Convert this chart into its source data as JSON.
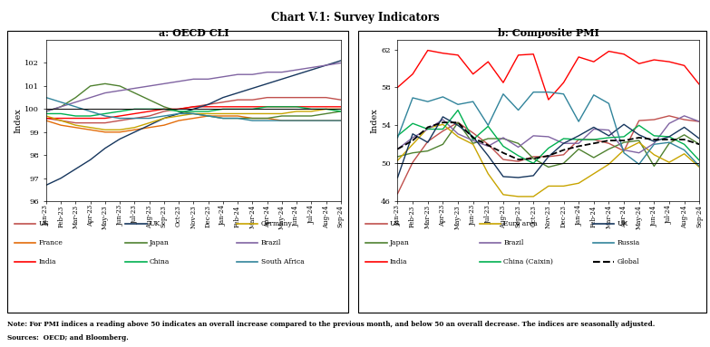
{
  "title": "Chart V.1: Survey Indicators",
  "note": "Note: For PMI indices a reading above 50 indicates an overall increase compared to the previous month, and below 50 an overall decrease. The indices are seasonally adjusted.",
  "sources": "Sources:  OECD; and Bloomberg.",
  "cli_labels": [
    "Jan-23",
    "Feb-23",
    "Mar-23",
    "Apr-23",
    "May-23",
    "Jun-23",
    "Jul-23",
    "Aug-23",
    "Sep-23",
    "Oct-23",
    "Nov-23",
    "Dec-23",
    "Jan-24",
    "Feb-24",
    "Mar-24",
    "Apr-24",
    "May-24",
    "Jun-24",
    "Jul-24",
    "Aug-24",
    "Sep-24"
  ],
  "cli_series": {
    "US": [
      99.6,
      99.5,
      99.4,
      99.4,
      99.4,
      99.5,
      99.6,
      99.7,
      99.9,
      100.0,
      100.1,
      100.2,
      100.3,
      100.4,
      100.4,
      100.5,
      100.5,
      100.5,
      100.5,
      100.5,
      100.4
    ],
    "France": [
      99.5,
      99.3,
      99.2,
      99.1,
      99.0,
      99.0,
      99.1,
      99.2,
      99.3,
      99.5,
      99.6,
      99.7,
      99.7,
      99.7,
      99.6,
      99.6,
      99.5,
      99.5,
      99.5,
      99.5,
      99.5
    ],
    "India": [
      99.6,
      99.6,
      99.6,
      99.6,
      99.6,
      99.7,
      99.8,
      99.9,
      100.0,
      100.0,
      100.1,
      100.1,
      100.1,
      100.1,
      100.1,
      100.1,
      100.1,
      100.1,
      100.1,
      100.1,
      100.1
    ],
    "UK": [
      96.7,
      97.0,
      97.4,
      97.8,
      98.3,
      98.7,
      99.0,
      99.3,
      99.6,
      99.8,
      100.0,
      100.2,
      100.5,
      100.7,
      100.9,
      101.1,
      101.3,
      101.5,
      101.7,
      101.9,
      102.1
    ],
    "Japan": [
      99.9,
      100.1,
      100.5,
      101.0,
      101.1,
      101.0,
      100.7,
      100.4,
      100.1,
      99.9,
      99.8,
      99.7,
      99.6,
      99.6,
      99.6,
      99.6,
      99.7,
      99.7,
      99.7,
      99.8,
      99.9
    ],
    "China": [
      99.8,
      99.8,
      99.7,
      99.7,
      99.8,
      99.9,
      100.0,
      100.0,
      100.0,
      99.9,
      99.9,
      99.9,
      100.0,
      100.0,
      100.0,
      100.1,
      100.1,
      100.1,
      100.0,
      100.0,
      99.9
    ],
    "Germany": [
      99.7,
      99.5,
      99.3,
      99.2,
      99.1,
      99.1,
      99.2,
      99.4,
      99.6,
      99.7,
      99.8,
      99.8,
      99.8,
      99.8,
      99.8,
      99.8,
      99.8,
      99.9,
      99.9,
      100.0,
      100.0
    ],
    "Brazil": [
      99.9,
      100.1,
      100.3,
      100.5,
      100.7,
      100.8,
      100.9,
      101.0,
      101.1,
      101.2,
      101.3,
      101.3,
      101.4,
      101.5,
      101.5,
      101.6,
      101.6,
      101.7,
      101.8,
      101.9,
      102.0
    ],
    "South Africa": [
      100.5,
      100.3,
      100.1,
      99.9,
      99.7,
      99.6,
      99.6,
      99.6,
      99.7,
      99.8,
      99.8,
      99.7,
      99.6,
      99.6,
      99.5,
      99.5,
      99.5,
      99.5,
      99.5,
      99.5,
      99.5
    ]
  },
  "cli_colors": {
    "US": "#c0504d",
    "France": "#e36c09",
    "India": "#ff0000",
    "UK": "#17375e",
    "Japan": "#4f8130",
    "China": "#00b050",
    "Germany": "#c8a400",
    "Brazil": "#8064a2",
    "South Africa": "#31849b"
  },
  "cli_ylim": [
    96,
    103
  ],
  "cli_yticks": [
    96,
    97,
    98,
    99,
    100,
    101,
    102
  ],
  "cli_hline": 100,
  "pmi_labels": [
    "Jan-23",
    "Feb-23",
    "Mar-23",
    "Apr-23",
    "May-23",
    "Jun-23",
    "Jul-23",
    "Aug-23",
    "Sep-23",
    "Oct-23",
    "Nov-23",
    "Dec-23",
    "Jan-24",
    "Feb-24",
    "Mar-24",
    "Apr-24",
    "May-24",
    "Jun-24",
    "Jul-24",
    "Aug-24",
    "Sep-24"
  ],
  "pmi_series": {
    "US": [
      46.8,
      50.1,
      52.3,
      53.4,
      54.3,
      53.2,
      52.0,
      50.4,
      50.2,
      50.7,
      50.7,
      50.9,
      52.5,
      52.5,
      52.1,
      51.3,
      54.5,
      54.6,
      55.0,
      54.6,
      54.4
    ],
    "Japan": [
      50.7,
      51.1,
      51.3,
      52.0,
      54.3,
      52.1,
      52.6,
      52.6,
      52.1,
      50.5,
      49.6,
      50.0,
      51.5,
      50.6,
      51.5,
      52.2,
      52.4,
      49.7,
      52.1,
      53.0,
      52.0
    ],
    "India": [
      58.0,
      59.4,
      61.9,
      61.6,
      61.4,
      59.4,
      60.7,
      58.5,
      61.4,
      61.5,
      56.7,
      58.5,
      61.2,
      60.7,
      61.8,
      61.5,
      60.5,
      60.9,
      60.7,
      60.3,
      58.3
    ],
    "Euro area": [
      50.3,
      52.0,
      53.7,
      54.1,
      52.8,
      52.0,
      48.9,
      46.7,
      46.5,
      46.5,
      47.6,
      47.6,
      47.9,
      48.9,
      49.9,
      51.4,
      52.2,
      50.9,
      50.1,
      51.0,
      49.6
    ],
    "Brazil": [
      51.5,
      52.7,
      53.6,
      54.6,
      53.1,
      52.4,
      51.8,
      52.7,
      51.7,
      52.9,
      52.8,
      52.1,
      52.1,
      53.6,
      53.5,
      51.4,
      51.1,
      52.1,
      54.2,
      55.0,
      54.4
    ],
    "China (Caixin)": [
      52.9,
      54.2,
      53.6,
      53.6,
      55.6,
      52.5,
      53.9,
      51.8,
      50.8,
      50.0,
      51.6,
      52.6,
      52.5,
      52.5,
      52.7,
      52.8,
      54.0,
      52.9,
      52.8,
      52.0,
      50.3
    ],
    "UK": [
      48.5,
      53.1,
      52.2,
      54.9,
      54.0,
      52.8,
      50.8,
      48.6,
      48.5,
      48.7,
      50.7,
      52.1,
      52.9,
      53.8,
      52.9,
      54.1,
      53.0,
      52.3,
      52.8,
      53.8,
      52.6
    ],
    "Russia": [
      52.7,
      56.9,
      56.5,
      57.0,
      56.2,
      56.5,
      54.0,
      57.3,
      55.6,
      57.5,
      57.5,
      57.3,
      54.4,
      57.2,
      56.3,
      51.1,
      49.9,
      52.0,
      52.2,
      51.4,
      49.7
    ],
    "Global": [
      51.5,
      52.4,
      53.8,
      54.3,
      54.3,
      52.7,
      51.9,
      51.1,
      50.4,
      50.5,
      50.8,
      51.4,
      51.8,
      52.1,
      52.4,
      52.4,
      52.7,
      52.5,
      52.5,
      52.5,
      52.0
    ]
  },
  "pmi_colors": {
    "US": "#c0504d",
    "Japan": "#4f8130",
    "India": "#ff0000",
    "Euro area": "#c8a400",
    "Brazil": "#8064a2",
    "China (Caixin)": "#00b050",
    "UK": "#17375e",
    "Russia": "#31849b",
    "Global": "#000000"
  },
  "pmi_styles": {
    "US": "-",
    "Japan": "-",
    "India": "-",
    "Euro area": "-",
    "Brazil": "-",
    "China (Caixin)": "-",
    "UK": "-",
    "Russia": "-",
    "Global": "--"
  },
  "pmi_ylim": [
    46,
    63
  ],
  "pmi_yticks": [
    46,
    50,
    54,
    58,
    62
  ],
  "pmi_hline": 50,
  "cli_cols": [
    [
      "US",
      "France",
      "India"
    ],
    [
      "UK",
      "Japan",
      "China"
    ],
    [
      "Germany",
      "Brazil",
      "South Africa"
    ]
  ],
  "pmi_cols": [
    [
      "US",
      "Japan",
      "India"
    ],
    [
      "Euro area",
      "Brazil",
      "China (Caixin)"
    ],
    [
      "UK",
      "Russia",
      "Global"
    ]
  ]
}
